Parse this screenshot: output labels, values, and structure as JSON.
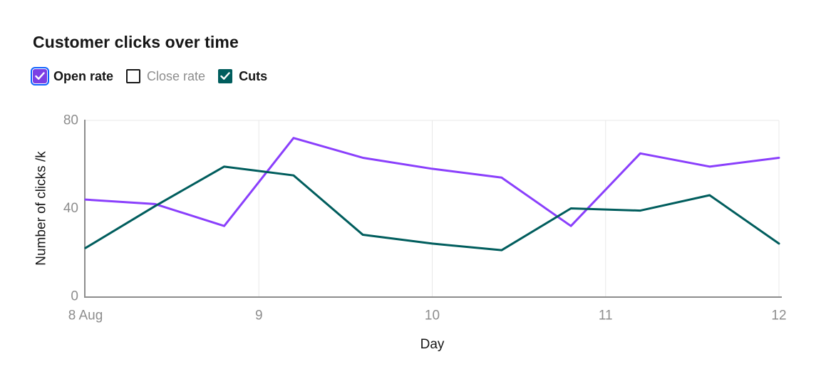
{
  "header": {
    "title": "Customer clicks over time"
  },
  "legend": {
    "focus_ring_color": "#0f62fe",
    "items": [
      {
        "label": "Open rate",
        "checked": true,
        "focused": true,
        "box_color": "#7c3fe4",
        "label_color": "#161616"
      },
      {
        "label": "Close rate",
        "checked": false,
        "focused": false,
        "box_color": "#ffffff",
        "label_color": "#8d8d8d"
      },
      {
        "label": "Cuts",
        "checked": true,
        "focused": false,
        "box_color": "#005d5d",
        "label_color": "#161616"
      }
    ]
  },
  "chart_data": {
    "type": "line",
    "title": "Customer clicks over time",
    "xlabel": "Day",
    "ylabel": "Number of clicks /k",
    "xlim": [
      8,
      12
    ],
    "ylim": [
      0,
      80
    ],
    "grid": "vertical",
    "legend_position": "top-left",
    "x": [
      8,
      8.4,
      8.8,
      9.2,
      9.6,
      10,
      10.4,
      10.8,
      11.2,
      11.6,
      12
    ],
    "series": [
      {
        "name": "Open rate",
        "color": "#8a3ffc",
        "visible": true,
        "values": [
          44,
          42,
          32,
          72,
          63,
          58,
          54,
          32,
          65,
          59,
          63
        ]
      },
      {
        "name": "Close rate",
        "color": null,
        "visible": false,
        "values": null
      },
      {
        "name": "Cuts",
        "color": "#005d5d",
        "visible": true,
        "values": [
          22,
          41,
          59,
          55,
          28,
          24,
          21,
          40,
          39,
          46,
          24
        ]
      }
    ],
    "x_ticks": [
      {
        "x": 8,
        "label": "8 Aug",
        "grid": false
      },
      {
        "x": 9,
        "label": "9",
        "grid": true
      },
      {
        "x": 10,
        "label": "10",
        "grid": true
      },
      {
        "x": 11,
        "label": "11",
        "grid": true
      },
      {
        "x": 12,
        "label": "12",
        "grid": true
      }
    ],
    "y_ticks": [
      {
        "y": 0,
        "label": "0"
      },
      {
        "y": 40,
        "label": "40"
      },
      {
        "y": 80,
        "label": "80"
      }
    ],
    "y_gridlines": [
      80
    ],
    "colors": {
      "axis_line": "#8d8d8d",
      "gridline": "#e8e8e8",
      "tick_label": "#8d8d8d",
      "axis_title": "#161616"
    }
  }
}
